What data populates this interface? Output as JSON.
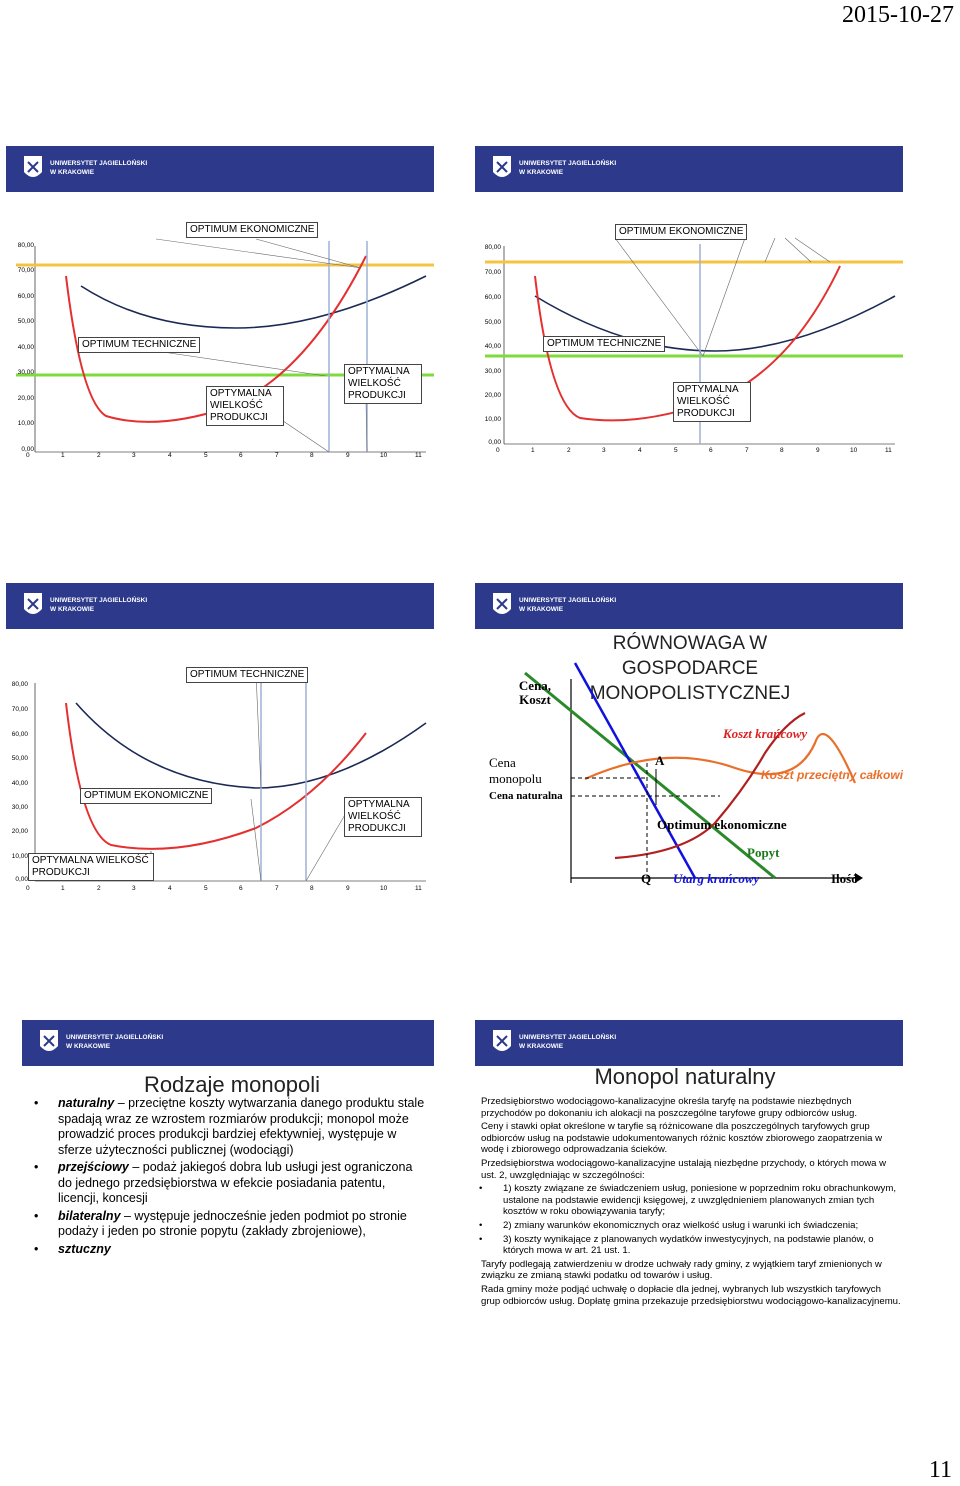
{
  "date": "2015-10-27",
  "page_number": "11",
  "logo": {
    "line1": "UNIWERSYTET JAGIELLOŃSKI",
    "line2": "W KRAKOWIE"
  },
  "axis": {
    "y_ticks": [
      "80,00",
      "70,00",
      "60,00",
      "50,00",
      "40,00",
      "30,00",
      "20,00",
      "10,00",
      "0,00"
    ],
    "x_ticks": [
      "0",
      "1",
      "2",
      "3",
      "4",
      "5",
      "6",
      "7",
      "8",
      "9",
      "10",
      "11"
    ]
  },
  "slide1": {
    "opt_ekon": "OPTIMUM EKONOMICZNE",
    "opt_tech": "OPTIMUM TECHNICZNE",
    "box_a": "OPTYMALNA WIELKOŚĆ PRODUKCJI",
    "box_b": "OPTYMALNA WIELKOŚĆ PRODUKCJI"
  },
  "slide2": {
    "opt_ekon": "OPTIMUM EKONOMICZNE",
    "opt_tech": "OPTIMUM TECHNICZNE",
    "box_a": "OPTYMALNA WIELKOŚĆ PRODUKCJI"
  },
  "slide3": {
    "opt_tech": "OPTIMUM TECHNICZNE",
    "opt_ekon": "OPTIMUM EKONOMICZNE",
    "box_a": "OPTYMALNA WIELKOŚĆ PRODUKCJI",
    "box_b": "OPTYMALNA WIELKOŚĆ PRODUKCJI"
  },
  "slide4": {
    "title": "RÓWNOWAGA W GOSPODARCE MONOPOLISTYCZNEJ",
    "cena_koszt": "Cena, Koszt",
    "koszt_krancowy": "Koszt krańcowy",
    "koszt_przecietny": "Koszt przeciętny całkowity",
    "cena_monopolu": "Cena monopolu",
    "cena_naturalna": "Cena naturalna",
    "a": "A",
    "optimum": "Optimum ekonomiczne",
    "popyt": "Popyt",
    "q": "Q",
    "utarg": "Utarg krańcowy",
    "ilosc": "Ilość"
  },
  "slide5": {
    "title": "Rodzaje monopoli",
    "items": [
      {
        "term": "naturalny",
        "text": " – przeciętne koszty wytwarzania danego produktu stale spadają wraz ze wzrostem rozmiarów produkcji; monopol może prowadzić proces produkcji bardziej efektywniej, występuje w sferze użyteczności publicznej (wodociągi)"
      },
      {
        "term": "przejściowy",
        "text": " – podaż jakiegoś dobra lub usługi jest ograniczona do jednego przedsiębiorstwa w efekcie posiadania patentu, licencji, koncesji"
      },
      {
        "term": "bilateralny",
        "text": " – występuje jednocześnie jeden podmiot po stronie podaży i jeden po stronie popytu (zakłady zbrojeniowe),"
      },
      {
        "term": "sztuczny",
        "text": ""
      }
    ]
  },
  "slide6": {
    "title": "Monopol naturalny",
    "p1": "Przedsiębiorstwo wodociągowo-kanalizacyjne określa taryfę na podstawie niezbędnych przychodów po dokonaniu ich alokacji na poszczególne taryfowe grupy odbiorców usług.",
    "p2": "Ceny i stawki opłat określone w taryfie są różnicowane dla poszczególnych taryfowych grup odbiorców usług na podstawie udokumentowanych różnic kosztów zbiorowego zaopatrzenia w wodę i zbiorowego odprowadzania ścieków.",
    "p3": "Przedsiębiorstwa wodociągowo-kanalizacyjne ustalają niezbędne przychody, o których mowa w ust. 2, uwzględniając w szczególności:",
    "bullets": [
      "1) koszty związane ze świadczeniem usług, poniesione w poprzednim roku obrachunkowym, ustalone na podstawie ewidencji księgowej, z uwzględnieniem planowanych zmian tych kosztów w roku obowiązywania taryfy;",
      "2) zmiany warunków ekonomicznych oraz wielkość usług i warunki ich świadczenia;",
      "3) koszty wynikające z planowanych wydatków inwestycyjnych, na podstawie planów, o których mowa w art. 21 ust. 1."
    ],
    "p4": "Taryfy podlegają zatwierdzeniu w drodze uchwały rady gminy, z wyjątkiem taryf zmienionych w związku ze zmianą stawki podatku od towarów i usług.",
    "p5": "Rada gminy może podjąć uchwałę o dopłacie dla jednej, wybranych lub wszystkich taryfowych grup odbiorców usług. Dopłatę gmina przekazuje przedsiębiorstwu wodociągowo-kanalizacyjnemu."
  }
}
